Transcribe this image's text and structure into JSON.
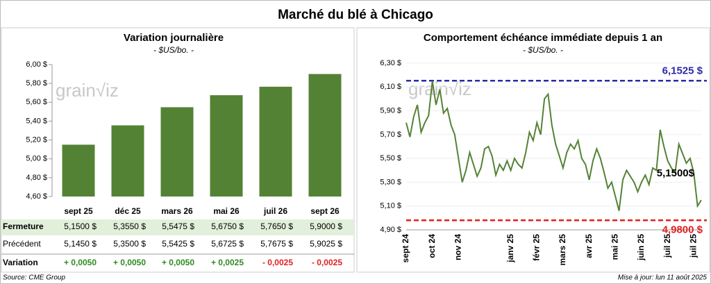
{
  "title": "Marché du blé à Chicago",
  "watermark": "grain√iz",
  "chart_data": [
    {
      "type": "bar",
      "title": "Variation journalière",
      "subtitle": "- $US/bo. -",
      "categories": [
        "sept 25",
        "déc 25",
        "mars 26",
        "mai 26",
        "juil 26",
        "sept 26"
      ],
      "values": [
        5.15,
        5.355,
        5.5475,
        5.675,
        5.765,
        5.9
      ],
      "color": "#548235",
      "ylim": [
        4.6,
        6.0
      ],
      "yticks": [
        {
          "value": 4.6,
          "label": "4,60 $"
        },
        {
          "value": 4.8,
          "label": "4,80 $"
        },
        {
          "value": 5.0,
          "label": "5,00 $"
        },
        {
          "value": 5.2,
          "label": "5,20 $"
        },
        {
          "value": 5.4,
          "label": "5,40 $"
        },
        {
          "value": 5.6,
          "label": "5,60 $"
        },
        {
          "value": 5.8,
          "label": "5,80 $"
        },
        {
          "value": 6.0,
          "label": "6,00 $"
        }
      ],
      "grid": false
    },
    {
      "type": "line",
      "title": "Comportement échéance immédiate depuis 1 an",
      "subtitle": "- $US/bo. -",
      "categories": [
        "sept 24",
        null,
        null,
        null,
        null,
        null,
        null,
        "oct 24",
        null,
        null,
        null,
        null,
        null,
        null,
        "nov 24",
        null,
        null,
        null,
        null,
        null,
        null,
        null,
        null,
        null,
        null,
        null,
        null,
        null,
        "janv 25",
        null,
        null,
        null,
        null,
        null,
        null,
        "févr 25",
        null,
        null,
        null,
        null,
        null,
        null,
        "mars 25",
        null,
        null,
        null,
        null,
        null,
        null,
        "avr 25",
        null,
        null,
        null,
        null,
        null,
        null,
        "mai 25",
        null,
        null,
        null,
        null,
        null,
        null,
        "juin 25",
        null,
        null,
        null,
        null,
        null,
        null,
        "juil 25",
        null,
        null,
        null,
        null,
        null,
        null,
        "juil 25",
        null,
        null
      ],
      "values": [
        5.8,
        5.68,
        5.85,
        5.95,
        5.72,
        5.8,
        5.86,
        6.15,
        5.95,
        6.08,
        5.88,
        5.92,
        5.78,
        5.7,
        5.5,
        5.3,
        5.4,
        5.55,
        5.45,
        5.35,
        5.42,
        5.58,
        5.6,
        5.52,
        5.36,
        5.45,
        5.4,
        5.48,
        5.4,
        5.5,
        5.45,
        5.42,
        5.55,
        5.72,
        5.65,
        5.8,
        5.7,
        6.0,
        6.04,
        5.78,
        5.62,
        5.52,
        5.42,
        5.55,
        5.62,
        5.58,
        5.65,
        5.5,
        5.45,
        5.32,
        5.48,
        5.58,
        5.5,
        5.38,
        5.25,
        5.3,
        5.18,
        5.06,
        5.32,
        5.4,
        5.35,
        5.3,
        5.22,
        5.3,
        5.36,
        5.28,
        5.42,
        5.4,
        5.74,
        5.6,
        5.48,
        5.42,
        5.38,
        5.62,
        5.54,
        5.46,
        5.5,
        5.38,
        5.1,
        5.15
      ],
      "color": "#548235",
      "ylim": [
        4.9,
        6.3
      ],
      "yticks": [
        {
          "value": 4.9,
          "label": "4,90 $"
        },
        {
          "value": 5.1,
          "label": "5,10 $"
        },
        {
          "value": 5.3,
          "label": "5,30 $"
        },
        {
          "value": 5.5,
          "label": "5,50 $"
        },
        {
          "value": 5.7,
          "label": "5,70 $"
        },
        {
          "value": 5.9,
          "label": "5,90 $"
        },
        {
          "value": 6.1,
          "label": "6,10 $"
        },
        {
          "value": 6.3,
          "label": "6,30 $"
        }
      ],
      "grid": true,
      "hlines": [
        {
          "value": 6.1525,
          "label": "6,1525 $",
          "color": "#2a2aa8"
        },
        {
          "value": 4.98,
          "label": "4,9800 $",
          "color": "#e02020"
        }
      ],
      "annotations": [
        {
          "value": 5.15,
          "label": "5,1500$"
        }
      ]
    }
  ],
  "table": {
    "rows": [
      [
        "Fermeture",
        "5,1500 $",
        "5,3550 $",
        "5,5475 $",
        "5,6750 $",
        "5,7650 $",
        "5,9000 $"
      ],
      [
        "Précédent",
        "5,1450 $",
        "5,3500 $",
        "5,5425 $",
        "5,6725 $",
        "5,7675 $",
        "5,9025 $"
      ],
      [
        "Variation",
        "+ 0,0050",
        "+ 0,0050",
        "+ 0,0050",
        "+ 0,0025",
        "- 0,0025",
        "- 0,0025"
      ]
    ]
  },
  "footer": {
    "source": "Source: CME Group",
    "updated": "Mise à jour: lun 11 août 2025"
  }
}
